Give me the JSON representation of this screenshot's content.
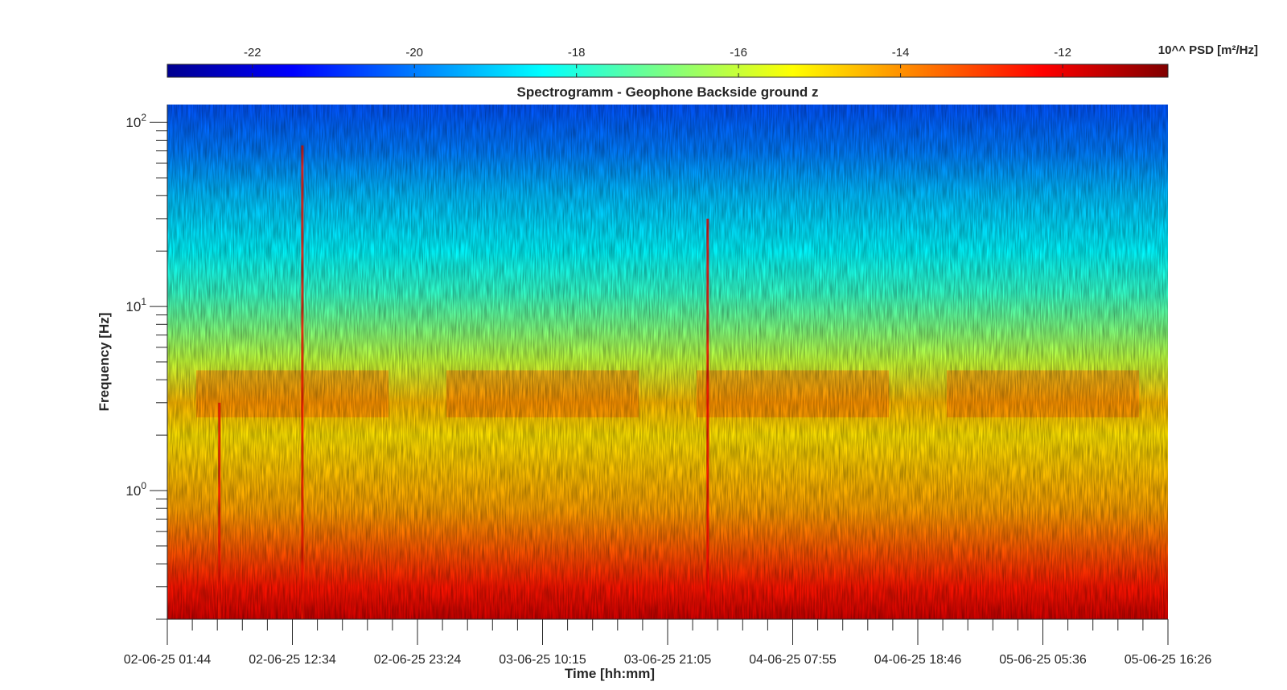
{
  "chart_data": {
    "type": "heatmap",
    "title": "Spectrogramm - Geophone Backside ground z",
    "xlabel": "Time [hh:mm]",
    "ylabel": "Frequency [Hz]",
    "y_scale": "log",
    "ylim": [
      0.2,
      125
    ],
    "x_ticks": [
      "02-06-25 01:44",
      "02-06-25 12:34",
      "02-06-25 23:24",
      "03-06-25 10:15",
      "03-06-25 21:05",
      "04-06-25 07:55",
      "04-06-25 18:46",
      "05-06-25 05:36",
      "05-06-25 16:26"
    ],
    "y_ticks": [
      {
        "base": "10",
        "exp": "0",
        "value": 1
      },
      {
        "base": "10",
        "exp": "1",
        "value": 10
      },
      {
        "base": "10",
        "exp": "2",
        "value": 100
      }
    ],
    "colorbar": {
      "label": "10^^ PSD [m²/Hz]",
      "ticks": [
        "-22",
        "-20",
        "-18",
        "-16",
        "-14",
        "-12"
      ],
      "tick_values": [
        -22,
        -20,
        -18,
        -16,
        -14,
        -12
      ],
      "range": [
        -23.05,
        -10.7
      ],
      "colormap": "jet"
    },
    "psd_profile_log10": [
      {
        "f": 0.2,
        "v": -11.7
      },
      {
        "f": 0.3,
        "v": -12.5
      },
      {
        "f": 0.5,
        "v": -13.4
      },
      {
        "f": 0.8,
        "v": -14.2
      },
      {
        "f": 1.0,
        "v": -14.4
      },
      {
        "f": 2.0,
        "v": -15.0
      },
      {
        "f": 3.0,
        "v": -14.5
      },
      {
        "f": 5.0,
        "v": -16.0
      },
      {
        "f": 8.0,
        "v": -17.0
      },
      {
        "f": 12.0,
        "v": -17.8
      },
      {
        "f": 20.0,
        "v": -18.5
      },
      {
        "f": 40.0,
        "v": -19.2
      },
      {
        "f": 70.0,
        "v": -20.0
      },
      {
        "f": 125.0,
        "v": -20.5
      }
    ],
    "activity_bands": [
      {
        "f_low": 2.5,
        "f_high": 4.5,
        "v": -13.5,
        "periods": [
          "day 1",
          "day 2",
          "day 3",
          "day 4"
        ]
      }
    ],
    "transient_events": [
      {
        "time": "02-06-25 ~06:30",
        "f_max": 3,
        "v": -12.5
      },
      {
        "time": "02-06-25 ~15:00",
        "f_max": 75,
        "v": -12.5
      },
      {
        "time": "03-06-25 ~23:30",
        "f_max": 30,
        "v": -12.3
      }
    ]
  }
}
